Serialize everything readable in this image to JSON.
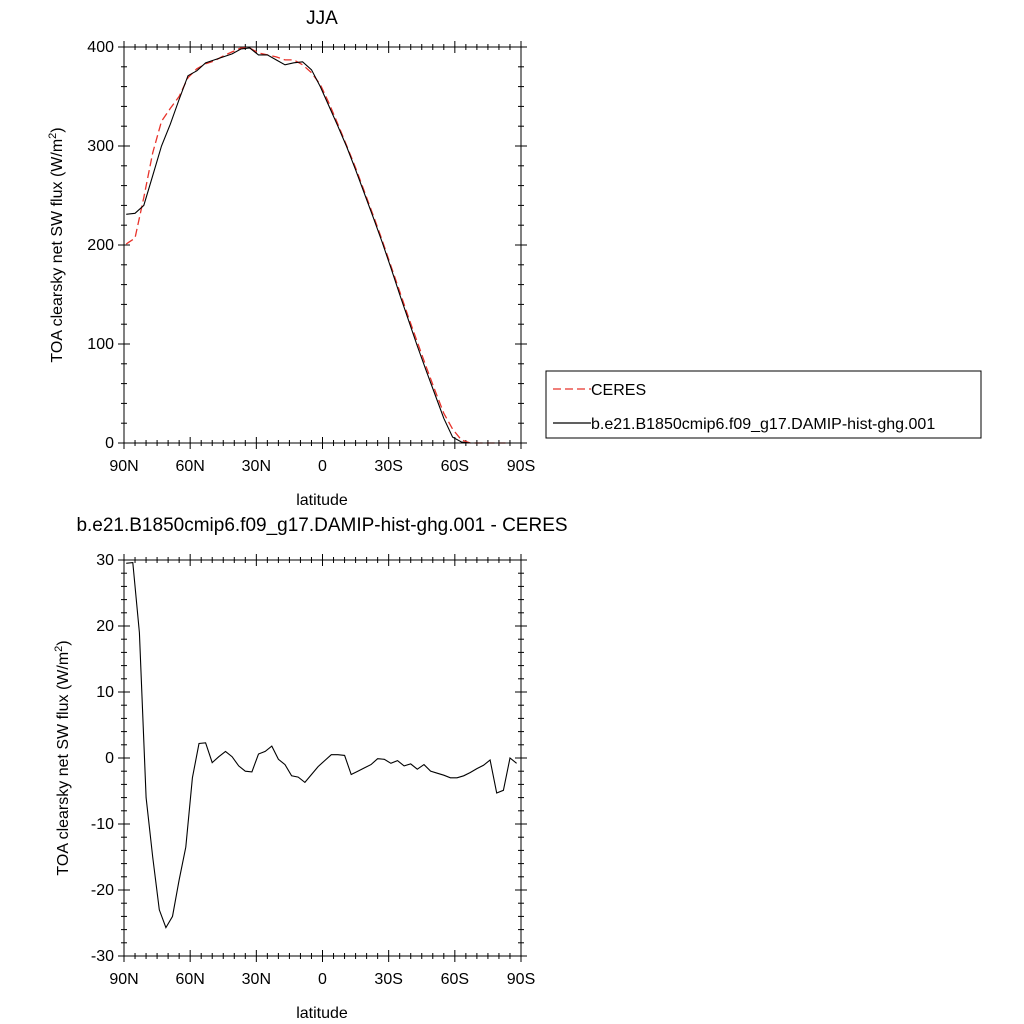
{
  "colors": {
    "ceres": "#e8332b",
    "model": "#000000",
    "frame": "#000000"
  },
  "chart_data": [
    {
      "type": "line",
      "title": "JJA",
      "xlabel": "latitude",
      "ylabel_main": "TOA clearsky net SW flux (W/m",
      "ylabel_sup": "2",
      "ylabel_tail": ")",
      "xlim": [
        90,
        -90
      ],
      "ylim": [
        0,
        400
      ],
      "xticks": [
        90,
        60,
        30,
        0,
        -30,
        -60,
        -90
      ],
      "xtick_labels": [
        "90N",
        "60N",
        "30N",
        "0",
        "30S",
        "60S",
        "90S"
      ],
      "yticks": [
        0,
        100,
        200,
        300,
        400
      ],
      "ytick_labels": [
        "0",
        "100",
        "200",
        "300",
        "400"
      ],
      "legend": {
        "placement": "right",
        "entries": [
          "CERES",
          "b.e21.B1850cmip6.f09_g17.DAMIP-hist-ghg.001"
        ]
      },
      "series": [
        {
          "name": "CERES",
          "style": "dashed",
          "x": [
            89,
            85,
            81,
            77,
            73,
            69,
            65,
            61,
            57,
            53,
            49,
            45,
            41,
            37,
            33,
            29,
            25,
            21,
            17,
            13,
            9,
            5,
            1,
            -3,
            -7,
            -11,
            -15,
            -19,
            -23,
            -27,
            -31,
            -35,
            -39,
            -43,
            -47,
            -51,
            -55,
            -59,
            -63,
            -67,
            -71,
            -75,
            -79,
            -83
          ],
          "y": [
            201,
            207,
            248,
            293,
            325,
            338,
            350,
            369,
            378,
            383,
            386,
            391,
            395,
            399,
            399,
            394,
            392,
            390,
            387,
            387,
            382,
            374,
            362,
            343,
            322,
            300,
            278,
            254,
            230,
            205,
            179,
            153,
            127,
            102,
            77,
            53,
            30,
            14,
            3,
            0,
            0,
            0,
            0,
            0
          ]
        },
        {
          "name": "b.e21.B1850cmip6.f09_g17.DAMIP-hist-ghg.001",
          "style": "solid",
          "x": [
            89,
            85,
            81,
            77,
            73,
            69,
            65,
            61,
            57,
            53,
            49,
            45,
            41,
            37,
            33,
            29,
            25,
            21,
            17,
            13,
            9,
            5,
            1,
            -3,
            -7,
            -11,
            -15,
            -19,
            -23,
            -27,
            -31,
            -35,
            -39,
            -43,
            -47,
            -51,
            -55,
            -59,
            -63,
            -67,
            -71,
            -75,
            -79,
            -83
          ],
          "y": [
            231,
            232,
            240,
            270,
            300,
            322,
            347,
            371,
            376,
            384,
            387,
            390,
            393,
            398,
            399,
            392,
            392,
            387,
            382,
            384,
            385,
            377,
            360,
            340,
            320,
            299,
            276,
            252,
            228,
            203,
            177,
            150,
            124,
            98,
            73,
            49,
            25,
            6,
            1,
            0,
            0,
            0,
            0,
            0
          ]
        }
      ]
    },
    {
      "type": "line",
      "title": "b.e21.B1850cmip6.f09_g17.DAMIP-hist-ghg.001 - CERES",
      "xlabel": "latitude",
      "ylabel_main": "TOA clearsky net SW flux (W/m",
      "ylabel_sup": "2",
      "ylabel_tail": ")",
      "xlim": [
        90,
        -90
      ],
      "ylim": [
        -30,
        30
      ],
      "xticks": [
        90,
        60,
        30,
        0,
        -30,
        -60,
        -90
      ],
      "xtick_labels": [
        "90N",
        "60N",
        "30N",
        "0",
        "30S",
        "60S",
        "90S"
      ],
      "yticks": [
        -30,
        -20,
        -10,
        0,
        10,
        20,
        30
      ],
      "ytick_labels": [
        "-30",
        "-20",
        "-10",
        "0",
        "10",
        "20",
        "30"
      ],
      "series": [
        {
          "style": "solid",
          "x": [
            89,
            86,
            83,
            80,
            77,
            74,
            71,
            68,
            65,
            62,
            59,
            56,
            53,
            50,
            47,
            44,
            41,
            38,
            35,
            32,
            29,
            26,
            23,
            20,
            17,
            14,
            11,
            8,
            5,
            2,
            -1,
            -4,
            -7,
            -10,
            -13,
            -16,
            -19,
            -22,
            -25,
            -28,
            -31,
            -34,
            -37,
            -40,
            -43,
            -46,
            -49,
            -52,
            -55,
            -58,
            -61,
            -64,
            -67,
            -70,
            -73,
            -76,
            -79,
            -82,
            -85,
            -88
          ],
          "y": [
            29.5,
            29.6,
            19,
            -6,
            -15,
            -23,
            -25.7,
            -24,
            -18.5,
            -13.5,
            -3,
            2.2,
            2.3,
            -0.7,
            0.2,
            1,
            0.2,
            -1.2,
            -2,
            -2.1,
            0.6,
            1,
            1.8,
            -0.2,
            -1,
            -2.7,
            -2.9,
            -3.7,
            -2.5,
            -1.3,
            -0.4,
            0.5,
            0.5,
            0.4,
            -2.5,
            -2,
            -1.5,
            -1,
            -0.1,
            -0.2,
            -0.8,
            -0.4,
            -1.2,
            -0.9,
            -1.7,
            -1,
            -2,
            -2.3,
            -2.6,
            -3,
            -3,
            -2.7,
            -2.2,
            -1.6,
            -1.1,
            -0.3,
            -5.3,
            -4.9,
            0,
            -0.8
          ]
        }
      ]
    }
  ]
}
